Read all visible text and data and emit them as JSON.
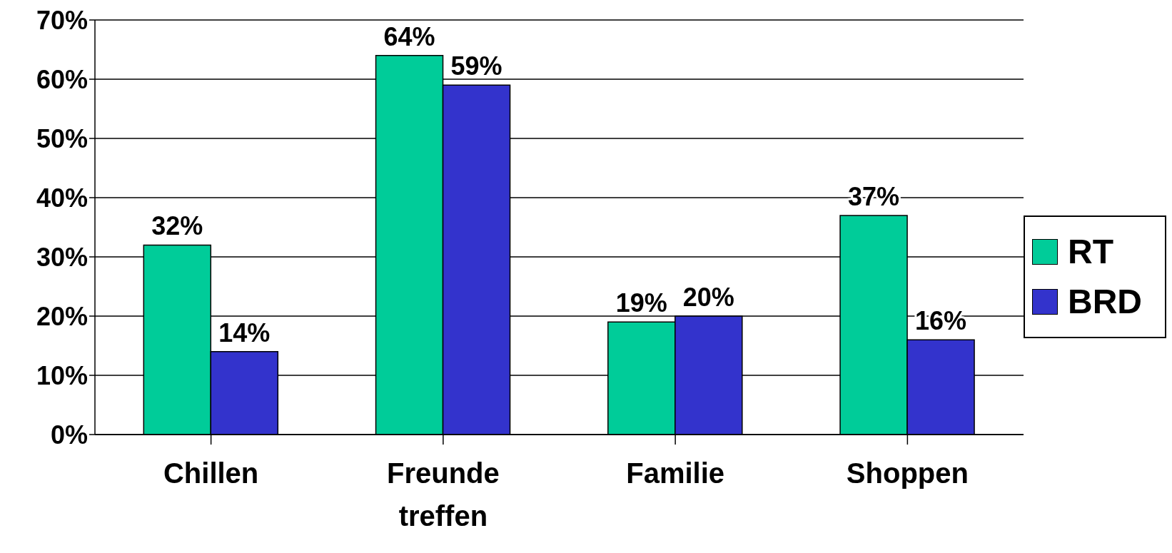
{
  "chart_data": {
    "type": "bar",
    "categories": [
      "Chillen",
      "Freunde treffen",
      "Familie",
      "Shoppen"
    ],
    "series": [
      {
        "name": "RT",
        "color": "#00cc99",
        "values": [
          32,
          64,
          19,
          37
        ],
        "value_labels": [
          "32%",
          "64%",
          "19%",
          "37%"
        ]
      },
      {
        "name": "BRD",
        "color": "#3333cc",
        "values": [
          14,
          59,
          20,
          16
        ],
        "value_labels": [
          "14%",
          "59%",
          "20%",
          "16%"
        ]
      }
    ],
    "ylim": [
      0,
      70
    ],
    "yticks": [
      {
        "value": 0,
        "label": "0%"
      },
      {
        "value": 10,
        "label": "10%"
      },
      {
        "value": 20,
        "label": "20%"
      },
      {
        "value": 30,
        "label": "30%"
      },
      {
        "value": 40,
        "label": "40%"
      },
      {
        "value": 50,
        "label": "50%"
      },
      {
        "value": 60,
        "label": "60%"
      },
      {
        "value": 70,
        "label": "70%"
      }
    ],
    "grid": "y",
    "legend": "right"
  }
}
